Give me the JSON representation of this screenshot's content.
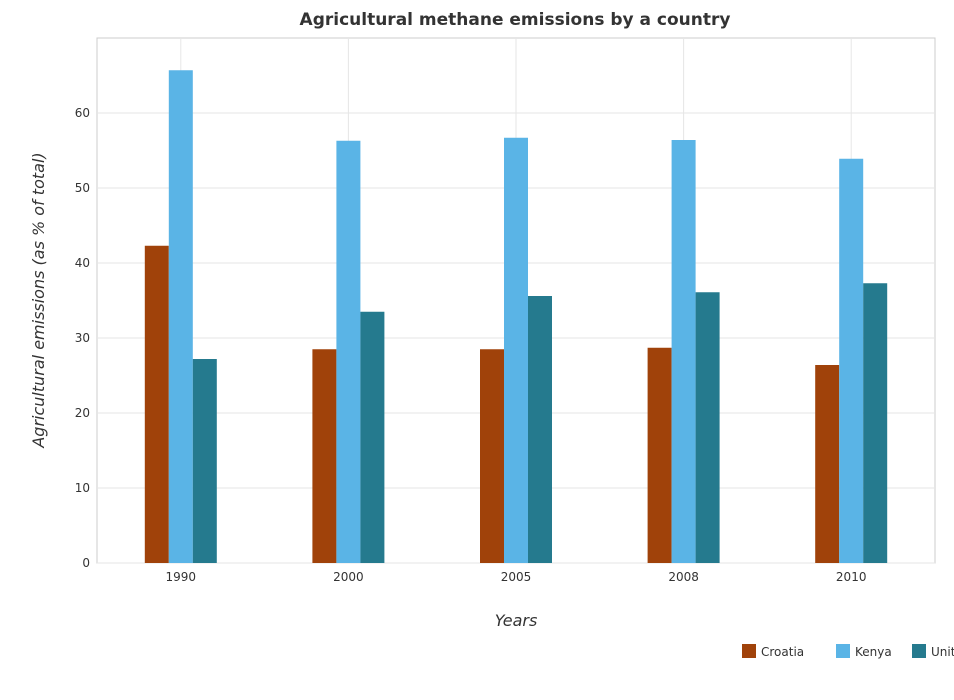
{
  "chart_data": {
    "type": "bar",
    "title": "Agricultural methane emissions by a country",
    "xlabel": "Years",
    "ylabel": "Agricultural emissions (as % of total)",
    "categories": [
      "1990",
      "2000",
      "2005",
      "2008",
      "2010"
    ],
    "ylim": [
      0,
      70
    ],
    "yticks": [
      0,
      10,
      20,
      30,
      40,
      50,
      60
    ],
    "grid": true,
    "legend_position": "bottom-right",
    "series": [
      {
        "name": "Croatia",
        "color": "#a0420a",
        "values": [
          42.3,
          28.5,
          28.5,
          28.7,
          26.4
        ]
      },
      {
        "name": "Kenya",
        "color": "#5ab4e6",
        "values": [
          65.7,
          56.3,
          56.7,
          56.4,
          53.9
        ]
      },
      {
        "name": "United States",
        "color": "#257a8e",
        "values": [
          27.2,
          33.5,
          35.6,
          36.1,
          37.3
        ]
      }
    ]
  }
}
